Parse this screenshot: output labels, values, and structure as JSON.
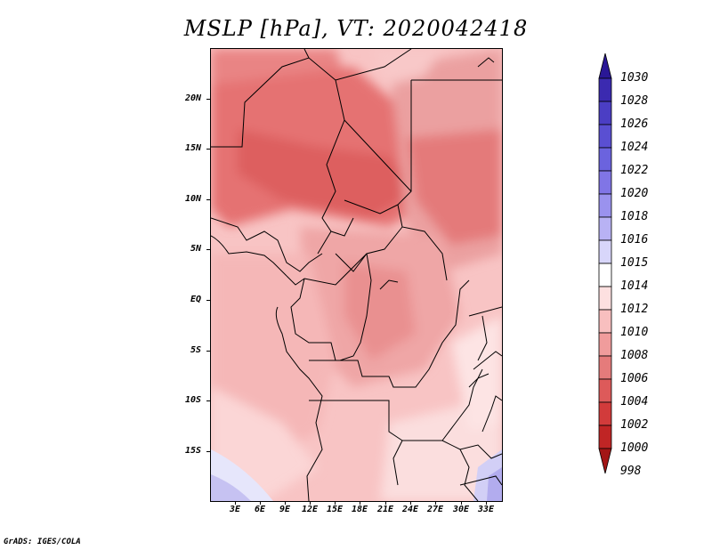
{
  "title": "MSLP [hPa], VT: 2020042418",
  "credit": "GrADS: IGES/COLA",
  "lat_labels": [
    "20N",
    "15N",
    "10N",
    "5N",
    "EQ",
    "5S",
    "10S",
    "15S"
  ],
  "lon_labels": [
    "3E",
    "6E",
    "9E",
    "12E",
    "15E",
    "18E",
    "21E",
    "24E",
    "27E",
    "30E",
    "33E"
  ],
  "colorbar": {
    "levels": [
      "1030",
      "1028",
      "1026",
      "1024",
      "1022",
      "1020",
      "1018",
      "1016",
      "1015",
      "1014",
      "1012",
      "1010",
      "1008",
      "1006",
      "1004",
      "1002",
      "1000",
      "998"
    ],
    "colors": [
      "#2a1796",
      "#3b2ab0",
      "#4b3ec4",
      "#5a4fd2",
      "#6b63de",
      "#8075e6",
      "#9a92ee",
      "#b8b2f4",
      "#d8d6fa",
      "#ffffff",
      "#fde0e0",
      "#f8bfbf",
      "#f09c9c",
      "#e57b7b",
      "#dd5a5a",
      "#d23b3b",
      "#c02525",
      "#a31616"
    ]
  }
}
